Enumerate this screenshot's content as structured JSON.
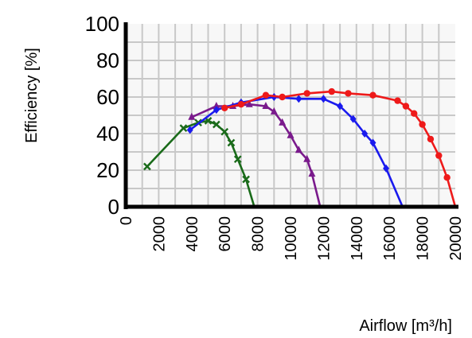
{
  "chart_data": {
    "type": "line",
    "title": "",
    "xlabel": "Airflow  [m³/h]",
    "ylabel": "Efficiency [%]",
    "xlim": [
      0,
      20000
    ],
    "ylim": [
      0,
      100
    ],
    "x_ticks": [
      "0",
      "2000",
      "4000",
      "6000",
      "8000",
      "10000",
      "12000",
      "14000",
      "16000",
      "18000",
      "20000"
    ],
    "y_ticks": [
      "0",
      "20",
      "40",
      "60",
      "80",
      "100"
    ],
    "grid": true,
    "plot_background": "#f7f7f7",
    "grid_color": "#c8c8c8",
    "series": [
      {
        "color": "#1a6b1a",
        "marker": "x",
        "points": [
          [
            1300,
            22
          ],
          [
            3500,
            43
          ],
          [
            4400,
            46
          ],
          [
            5000,
            47
          ],
          [
            5500,
            45
          ],
          [
            6000,
            41
          ],
          [
            6400,
            35
          ],
          [
            6800,
            26
          ],
          [
            7300,
            15
          ],
          [
            7800,
            0
          ]
        ]
      },
      {
        "color": "#7a1a8c",
        "marker": "triangle",
        "points": [
          [
            4000,
            49
          ],
          [
            5500,
            55
          ],
          [
            6500,
            55
          ],
          [
            7500,
            56
          ],
          [
            8500,
            55
          ],
          [
            9000,
            52
          ],
          [
            9500,
            46
          ],
          [
            10000,
            39
          ],
          [
            10500,
            31
          ],
          [
            11000,
            26
          ],
          [
            11300,
            18
          ],
          [
            11800,
            0
          ]
        ]
      },
      {
        "color": "#1a1aee",
        "marker": "diamond",
        "points": [
          [
            3900,
            42
          ],
          [
            5500,
            53
          ],
          [
            7000,
            57
          ],
          [
            9000,
            60
          ],
          [
            10500,
            59
          ],
          [
            12000,
            59
          ],
          [
            13000,
            55
          ],
          [
            13800,
            48
          ],
          [
            14500,
            40
          ],
          [
            15000,
            35
          ],
          [
            15800,
            21
          ],
          [
            16800,
            0
          ]
        ]
      },
      {
        "color": "#ee1a1a",
        "marker": "circle",
        "points": [
          [
            6000,
            54
          ],
          [
            7000,
            56
          ],
          [
            8500,
            61
          ],
          [
            9500,
            60
          ],
          [
            11000,
            62
          ],
          [
            12500,
            63
          ],
          [
            13500,
            62
          ],
          [
            15000,
            61
          ],
          [
            16500,
            58
          ],
          [
            17000,
            55
          ],
          [
            17500,
            51
          ],
          [
            18000,
            45
          ],
          [
            18500,
            37
          ],
          [
            19000,
            28
          ],
          [
            19500,
            16
          ],
          [
            20000,
            0
          ]
        ]
      }
    ]
  }
}
